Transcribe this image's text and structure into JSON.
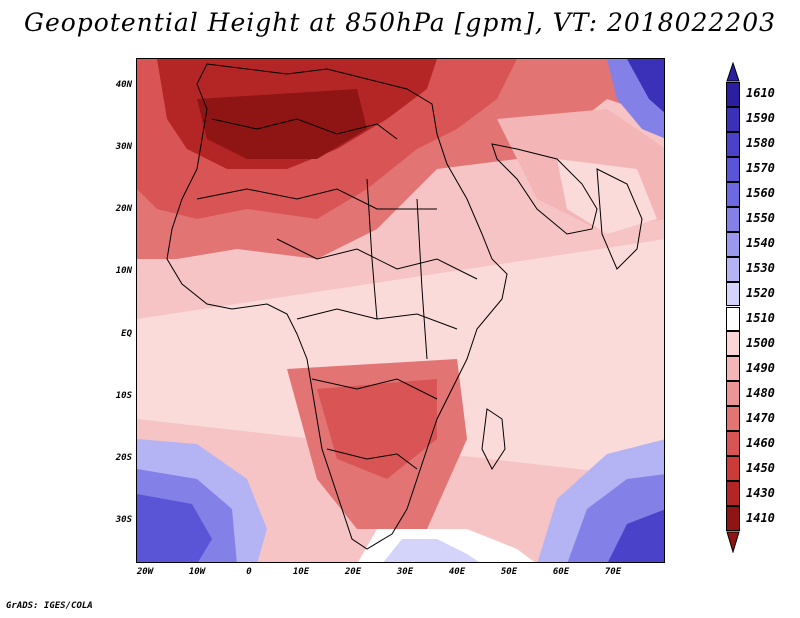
{
  "title": "Geopotential Height at 850hPa [gpm], VT: 2018022203",
  "credit": "GrADS: IGES/COLA",
  "map": {
    "lat_ticks": [
      "40N",
      "30N",
      "20N",
      "10N",
      "EQ",
      "10S",
      "20S",
      "30S"
    ],
    "lon_ticks": [
      "20W",
      "10W",
      "0",
      "10E",
      "20E",
      "30E",
      "40E",
      "50E",
      "60E",
      "70E"
    ]
  },
  "colorbar": {
    "labels": [
      "1610",
      "1590",
      "1580",
      "1570",
      "1560",
      "1550",
      "1540",
      "1530",
      "1520",
      "1510",
      "1500",
      "1490",
      "1480",
      "1470",
      "1460",
      "1450",
      "1430",
      "1410"
    ],
    "colors": [
      "#2a1fa0",
      "#3a31b8",
      "#4a42c8",
      "#5a55d6",
      "#6d69e0",
      "#8380e8",
      "#9b99ee",
      "#b4b3f4",
      "#d4d4fa",
      "#ffffff",
      "#fad6d6",
      "#f3b5b5",
      "#eb9696",
      "#e27474",
      "#d95454",
      "#cc3a3a",
      "#b42626",
      "#8f1414"
    ]
  }
}
